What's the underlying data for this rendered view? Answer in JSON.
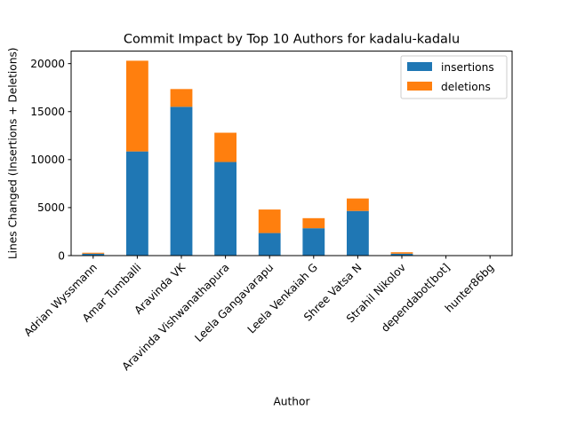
{
  "chart_data": {
    "type": "bar",
    "stacked": true,
    "title": "Commit Impact by Top 10 Authors for kadalu-kadalu",
    "xlabel": "Author",
    "ylabel": "Lines Changed (Insertions + Deletions)",
    "ylim": [
      0,
      21300
    ],
    "yticks": [
      0,
      5000,
      10000,
      15000,
      20000
    ],
    "ytick_labels": [
      "0",
      "5000",
      "10000",
      "15000",
      "20000"
    ],
    "grid": false,
    "legend_position": "top-right",
    "categories": [
      "Adrian Wyssmann",
      "Amar Tumballi",
      "Aravinda VK",
      "Aravinda Vishwanathapura",
      "Leela Gangavarapu",
      "Leela Venkaiah G",
      "Shree Vatsa N",
      "Strahil Nikolov",
      "dependabot[bot]",
      "hunter86bg"
    ],
    "series": [
      {
        "name": "insertions",
        "color": "#1f77b4",
        "values": [
          200,
          10850,
          15500,
          9750,
          2350,
          2850,
          4650,
          200,
          5,
          5
        ]
      },
      {
        "name": "deletions",
        "color": "#ff7f0e",
        "values": [
          100,
          9450,
          1850,
          3050,
          2450,
          1050,
          1300,
          150,
          5,
          5
        ]
      }
    ]
  }
}
